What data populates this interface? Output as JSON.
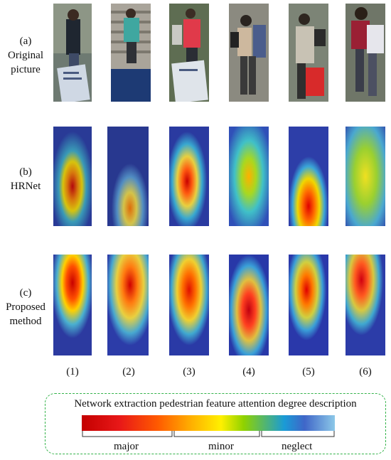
{
  "rows": [
    {
      "label_lines": [
        "(a)",
        "Original",
        "picture"
      ]
    },
    {
      "label_lines": [
        "(b)",
        "HRNet"
      ]
    },
    {
      "label_lines": [
        "(c)",
        "Proposed",
        "method"
      ]
    }
  ],
  "columns": [
    "(1)",
    "(2)",
    "(3)",
    "(4)",
    "(5)",
    "(6)"
  ],
  "legend": {
    "title": "Network extraction pedestrian feature attention degree description",
    "labels": [
      "major",
      "minor",
      "neglect"
    ]
  },
  "colors": {
    "dashed_border": "#34b34a",
    "major": "#c40000",
    "minor": "#fff000",
    "neglect": "#8cc8e8"
  }
}
